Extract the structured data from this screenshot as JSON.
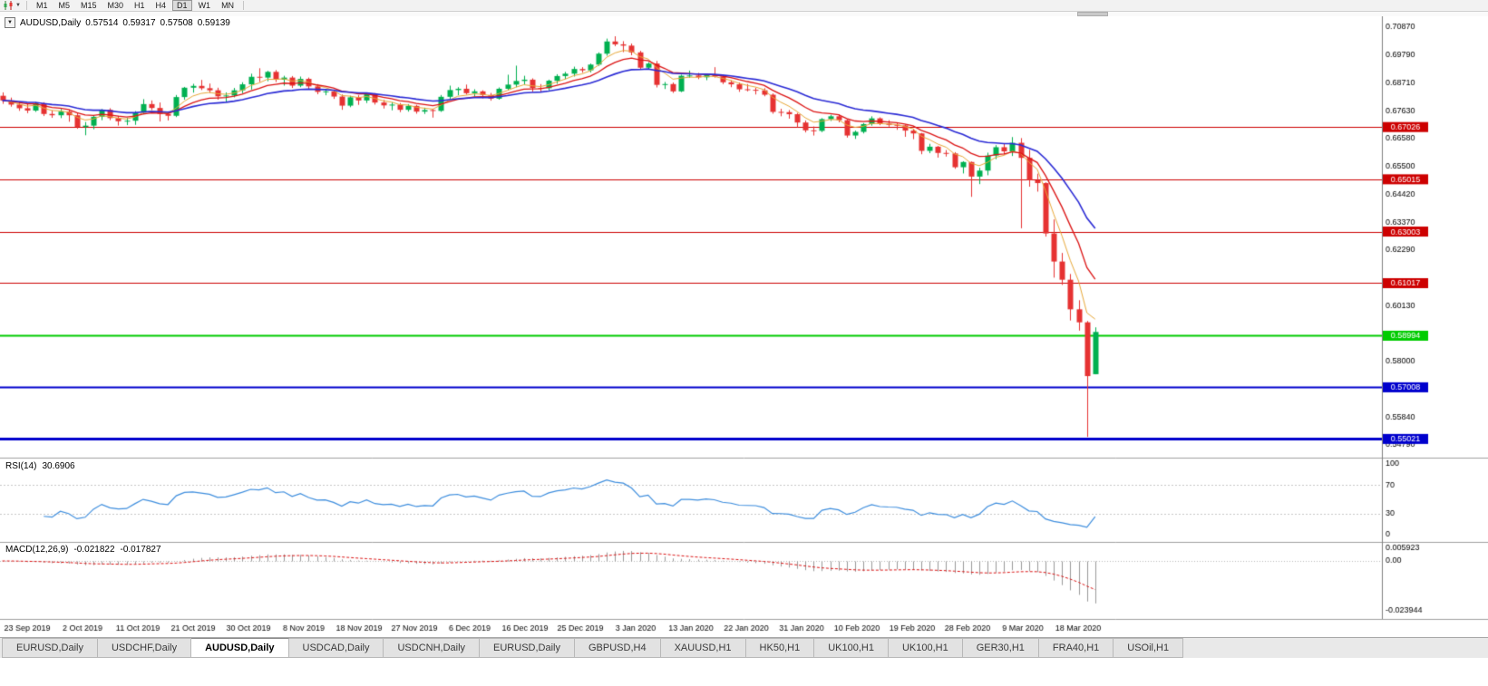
{
  "toolbar": {
    "timeframes": [
      "M1",
      "M5",
      "M15",
      "M30",
      "H1",
      "H4",
      "D1",
      "W1",
      "MN"
    ],
    "active_timeframe": "D1"
  },
  "chart_header": {
    "symbol_period": "AUDUSD,Daily",
    "open": "0.57514",
    "high": "0.59317",
    "low": "0.57508",
    "close": "0.59139"
  },
  "tabs": {
    "active_index": 2,
    "items": [
      "EURUSD,Daily",
      "USDCHF,Daily",
      "AUDUSD,Daily",
      "USDCAD,Daily",
      "USDCNH,Daily",
      "EURUSD,Daily",
      "GBPUSD,H4",
      "XAUUSD,H1",
      "HK50,H1",
      "UK100,H1",
      "UK100,H1",
      "GER30,H1",
      "FRA40,H1",
      "USOil,H1"
    ]
  },
  "chart_data": {
    "type": "candlestick",
    "symbol": "AUDUSD",
    "timeframe": "Daily",
    "current_bar": {
      "open": 0.57514,
      "high": 0.59317,
      "low": 0.57508,
      "close": 0.59139
    },
    "y_axis_labels": [
      "0.70870",
      "0.69790",
      "0.68710",
      "0.67630",
      "0.66580",
      "0.65500",
      "0.64420",
      "0.63370",
      "0.62290",
      "0.60130",
      "0.58000",
      "0.55840",
      "0.54790"
    ],
    "x_labels": [
      "23 Sep 2019",
      "2 Oct 2019",
      "11 Oct 2019",
      "21 Oct 2019",
      "30 Oct 2019",
      "8 Nov 2019",
      "18 Nov 2019",
      "27 Nov 2019",
      "6 Dec 2019",
      "16 Dec 2019",
      "25 Dec 2019",
      "3 Jan 2020",
      "13 Jan 2020",
      "22 Jan 2020",
      "31 Jan 2020",
      "10 Feb 2020",
      "19 Feb 2020",
      "28 Feb 2020",
      "9 Mar 2020",
      "18 Mar 2020"
    ],
    "hlines": [
      {
        "price": 0.67026,
        "label": "0.67026",
        "color": "#cd0000",
        "width": 1
      },
      {
        "price": 0.65015,
        "label": "0.65015",
        "color": "#cd0000",
        "width": 1
      },
      {
        "price": 0.63003,
        "label": "0.63003",
        "color": "#cd0000",
        "width": 1
      },
      {
        "price": 0.61017,
        "label": "0.61017",
        "color": "#cd0000",
        "width": 1
      },
      {
        "price": 0.58994,
        "label": "0.58994",
        "color": "#00cc00",
        "width": 2
      },
      {
        "price": 0.57008,
        "label": "0.57008",
        "color": "#0000cd",
        "width": 2
      },
      {
        "price": 0.55021,
        "label": "0.55021",
        "color": "#0000cd",
        "width": 3
      }
    ],
    "moving_averages": [
      {
        "period": 5,
        "color": "#e8a838"
      },
      {
        "period": 10,
        "color": "#dc1414"
      },
      {
        "period": 21,
        "color": "#2a2ad5"
      }
    ],
    "colors": {
      "up": "#00b050",
      "down": "#e63232",
      "axis_text": "#000000",
      "separator": "#a0a0a0"
    },
    "candles": [
      [
        0.6823,
        0.6836,
        0.6792,
        0.6805
      ],
      [
        0.6805,
        0.6816,
        0.6781,
        0.6789
      ],
      [
        0.6789,
        0.68,
        0.6765,
        0.6775
      ],
      [
        0.6775,
        0.6791,
        0.6756,
        0.6766
      ],
      [
        0.6766,
        0.6799,
        0.6761,
        0.6794
      ],
      [
        0.6794,
        0.6798,
        0.6745,
        0.6753
      ],
      [
        0.6753,
        0.6767,
        0.6738,
        0.6748
      ],
      [
        0.6748,
        0.6772,
        0.6737,
        0.6762
      ],
      [
        0.6762,
        0.677,
        0.6723,
        0.6748
      ],
      [
        0.6748,
        0.6757,
        0.6696,
        0.6703
      ],
      [
        0.6703,
        0.6722,
        0.6671,
        0.6708
      ],
      [
        0.6708,
        0.6748,
        0.6694,
        0.6742
      ],
      [
        0.6742,
        0.6772,
        0.6729,
        0.6769
      ],
      [
        0.6769,
        0.6775,
        0.6729,
        0.6737
      ],
      [
        0.6737,
        0.6746,
        0.6708,
        0.6725
      ],
      [
        0.6725,
        0.6738,
        0.671,
        0.6727
      ],
      [
        0.6727,
        0.6764,
        0.6711,
        0.6758
      ],
      [
        0.6758,
        0.681,
        0.6752,
        0.6791
      ],
      [
        0.6791,
        0.6805,
        0.6768,
        0.6776
      ],
      [
        0.6776,
        0.6797,
        0.6724,
        0.6753
      ],
      [
        0.6753,
        0.6762,
        0.6728,
        0.6746
      ],
      [
        0.6746,
        0.6826,
        0.6741,
        0.6818
      ],
      [
        0.6818,
        0.6857,
        0.6808,
        0.6854
      ],
      [
        0.6854,
        0.6869,
        0.6835,
        0.6861
      ],
      [
        0.6861,
        0.6884,
        0.6845,
        0.6852
      ],
      [
        0.6852,
        0.687,
        0.6834,
        0.6844
      ],
      [
        0.6844,
        0.6854,
        0.6808,
        0.6821
      ],
      [
        0.6821,
        0.6836,
        0.6801,
        0.6824
      ],
      [
        0.6824,
        0.6853,
        0.6817,
        0.6844
      ],
      [
        0.6844,
        0.6875,
        0.6833,
        0.6867
      ],
      [
        0.6867,
        0.6908,
        0.6847,
        0.6896
      ],
      [
        0.6896,
        0.6929,
        0.6876,
        0.6893
      ],
      [
        0.6893,
        0.6919,
        0.6879,
        0.6915
      ],
      [
        0.6915,
        0.6922,
        0.6876,
        0.6885
      ],
      [
        0.6885,
        0.69,
        0.6862,
        0.6893
      ],
      [
        0.6893,
        0.6899,
        0.6853,
        0.6862
      ],
      [
        0.6862,
        0.6897,
        0.6856,
        0.6888
      ],
      [
        0.6888,
        0.6893,
        0.685,
        0.6859
      ],
      [
        0.6859,
        0.6868,
        0.6829,
        0.6838
      ],
      [
        0.6838,
        0.685,
        0.6825,
        0.684
      ],
      [
        0.684,
        0.6847,
        0.6811,
        0.682
      ],
      [
        0.682,
        0.6828,
        0.6769,
        0.6785
      ],
      [
        0.6785,
        0.6823,
        0.6779,
        0.6817
      ],
      [
        0.6817,
        0.6825,
        0.6788,
        0.6805
      ],
      [
        0.6805,
        0.6834,
        0.6795,
        0.6829
      ],
      [
        0.6829,
        0.6833,
        0.6789,
        0.6797
      ],
      [
        0.6797,
        0.6807,
        0.6774,
        0.6786
      ],
      [
        0.6786,
        0.6798,
        0.6767,
        0.6789
      ],
      [
        0.6789,
        0.6795,
        0.676,
        0.6769
      ],
      [
        0.6769,
        0.6791,
        0.6762,
        0.6784
      ],
      [
        0.6784,
        0.6788,
        0.6754,
        0.6762
      ],
      [
        0.6762,
        0.6777,
        0.6753,
        0.6768
      ],
      [
        0.6768,
        0.6773,
        0.6739,
        0.6765
      ],
      [
        0.6765,
        0.6826,
        0.6761,
        0.6819
      ],
      [
        0.6819,
        0.6862,
        0.6809,
        0.6845
      ],
      [
        0.6845,
        0.6856,
        0.6825,
        0.685
      ],
      [
        0.685,
        0.6866,
        0.6828,
        0.6833
      ],
      [
        0.6833,
        0.6848,
        0.682,
        0.684
      ],
      [
        0.684,
        0.6844,
        0.6813,
        0.6826
      ],
      [
        0.6826,
        0.6834,
        0.6804,
        0.6812
      ],
      [
        0.6812,
        0.6855,
        0.6808,
        0.685
      ],
      [
        0.685,
        0.6904,
        0.6844,
        0.6866
      ],
      [
        0.6866,
        0.6939,
        0.6856,
        0.688
      ],
      [
        0.688,
        0.69,
        0.6867,
        0.6885
      ],
      [
        0.6885,
        0.689,
        0.6838,
        0.6853
      ],
      [
        0.6853,
        0.6868,
        0.6838,
        0.6852
      ],
      [
        0.6852,
        0.6885,
        0.6844,
        0.6881
      ],
      [
        0.6881,
        0.6906,
        0.6869,
        0.6899
      ],
      [
        0.6899,
        0.6915,
        0.6887,
        0.6908
      ],
      [
        0.6908,
        0.6935,
        0.6897,
        0.6926
      ],
      [
        0.6926,
        0.6933,
        0.6912,
        0.6921
      ],
      [
        0.6921,
        0.6947,
        0.6913,
        0.6943
      ],
      [
        0.6943,
        0.699,
        0.6938,
        0.6985
      ],
      [
        0.6985,
        0.7043,
        0.6977,
        0.7032
      ],
      [
        0.7032,
        0.7052,
        0.7014,
        0.7021
      ],
      [
        0.7021,
        0.7033,
        0.6991,
        0.7016
      ],
      [
        0.7016,
        0.7024,
        0.6979,
        0.699
      ],
      [
        0.699,
        0.6996,
        0.6923,
        0.6931
      ],
      [
        0.6931,
        0.6952,
        0.6924,
        0.6947
      ],
      [
        0.6947,
        0.6957,
        0.6855,
        0.6865
      ],
      [
        0.6865,
        0.6876,
        0.6849,
        0.6868
      ],
      [
        0.6868,
        0.6874,
        0.6834,
        0.684
      ],
      [
        0.684,
        0.6904,
        0.6837,
        0.69
      ],
      [
        0.69,
        0.692,
        0.6892,
        0.6901
      ],
      [
        0.6901,
        0.6911,
        0.6887,
        0.6894
      ],
      [
        0.6894,
        0.6909,
        0.6883,
        0.6904
      ],
      [
        0.6904,
        0.6933,
        0.6893,
        0.6897
      ],
      [
        0.6897,
        0.6903,
        0.6868,
        0.6875
      ],
      [
        0.6875,
        0.6882,
        0.6856,
        0.6867
      ],
      [
        0.6867,
        0.6874,
        0.6838,
        0.6848
      ],
      [
        0.6848,
        0.6868,
        0.684,
        0.6846
      ],
      [
        0.6846,
        0.6854,
        0.6828,
        0.6844
      ],
      [
        0.6844,
        0.6852,
        0.6821,
        0.6827
      ],
      [
        0.6827,
        0.6832,
        0.6754,
        0.6761
      ],
      [
        0.6761,
        0.6773,
        0.6744,
        0.676
      ],
      [
        0.676,
        0.6768,
        0.6735,
        0.6752
      ],
      [
        0.6752,
        0.6757,
        0.6701,
        0.672
      ],
      [
        0.672,
        0.6728,
        0.6682,
        0.669
      ],
      [
        0.669,
        0.6705,
        0.667,
        0.6688
      ],
      [
        0.6688,
        0.6737,
        0.6683,
        0.6733
      ],
      [
        0.6733,
        0.675,
        0.6726,
        0.6744
      ],
      [
        0.6744,
        0.6752,
        0.6721,
        0.6729
      ],
      [
        0.6729,
        0.6733,
        0.6662,
        0.667
      ],
      [
        0.667,
        0.6689,
        0.6657,
        0.6684
      ],
      [
        0.6684,
        0.6718,
        0.6678,
        0.6714
      ],
      [
        0.6714,
        0.6744,
        0.6708,
        0.6736
      ],
      [
        0.6736,
        0.674,
        0.671,
        0.6716
      ],
      [
        0.6716,
        0.6729,
        0.6704,
        0.6711
      ],
      [
        0.6711,
        0.672,
        0.6692,
        0.6709
      ],
      [
        0.6709,
        0.6712,
        0.6665,
        0.6689
      ],
      [
        0.6689,
        0.6696,
        0.6656,
        0.6678
      ],
      [
        0.6678,
        0.668,
        0.6598,
        0.6611
      ],
      [
        0.6611,
        0.6638,
        0.6602,
        0.6627
      ],
      [
        0.6627,
        0.663,
        0.6585,
        0.6603
      ],
      [
        0.6603,
        0.6614,
        0.6589,
        0.6601
      ],
      [
        0.6601,
        0.6606,
        0.6542,
        0.6548
      ],
      [
        0.6548,
        0.6571,
        0.6524,
        0.6568
      ],
      [
        0.6568,
        0.657,
        0.6434,
        0.6512
      ],
      [
        0.6512,
        0.6546,
        0.6483,
        0.6535
      ],
      [
        0.6535,
        0.6604,
        0.6517,
        0.6593
      ],
      [
        0.6593,
        0.6633,
        0.6579,
        0.6625
      ],
      [
        0.6625,
        0.6639,
        0.6597,
        0.6609
      ],
      [
        0.6609,
        0.6664,
        0.6591,
        0.6642
      ],
      [
        0.6642,
        0.666,
        0.6313,
        0.6584
      ],
      [
        0.6584,
        0.6615,
        0.6473,
        0.6498
      ],
      [
        0.6498,
        0.6523,
        0.6454,
        0.6487
      ],
      [
        0.6487,
        0.649,
        0.6281,
        0.6293
      ],
      [
        0.6293,
        0.6347,
        0.6123,
        0.6185
      ],
      [
        0.6185,
        0.6218,
        0.6095,
        0.6115
      ],
      [
        0.6115,
        0.6137,
        0.5958,
        0.6001
      ],
      [
        0.6001,
        0.6036,
        0.5919,
        0.5951
      ],
      [
        0.5951,
        0.5956,
        0.551,
        0.5744
      ],
      [
        0.57514,
        0.59317,
        0.57508,
        0.59139
      ]
    ],
    "indicators": {
      "rsi": {
        "label": "RSI(14)",
        "current": "30.6906",
        "period": 14,
        "levels": [
          "100",
          "70",
          "30",
          "0"
        ],
        "color": "#3e8ede"
      },
      "macd": {
        "label": "MACD(12,26,9)",
        "main": "-0.021822",
        "signal_value": "-0.017827",
        "fast": 12,
        "slow": 26,
        "signal": 9,
        "axis_labels": [
          "0.005923",
          "0.00",
          "-0.023944"
        ],
        "histogram_color": "#999999",
        "signal_color": "#dc1414"
      }
    }
  }
}
